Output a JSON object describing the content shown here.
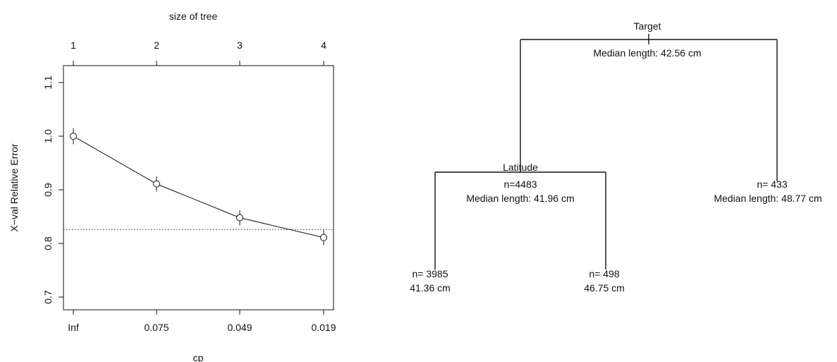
{
  "chart_data": [
    {
      "type": "line",
      "top_axis_label": "size of tree",
      "top_ticks": [
        "1",
        "2",
        "3",
        "4"
      ],
      "xlabel": "cp",
      "x_tick_labels": [
        "Inf",
        "0.075",
        "0.049",
        "0.019"
      ],
      "ylabel": "X−val Relative Error",
      "ylim": [
        0.7,
        1.1
      ],
      "y_ticks": [
        0.7,
        0.8,
        0.9,
        1.0,
        1.1
      ],
      "y_tick_labels": [
        "0.7",
        "0.8",
        "0.9",
        "1.0",
        "1.1"
      ],
      "points": [
        {
          "size": 1,
          "cp": "Inf",
          "y": 1.0,
          "lo": 0.985,
          "hi": 1.015
        },
        {
          "size": 2,
          "cp": "0.075",
          "y": 0.911,
          "lo": 0.897,
          "hi": 0.925
        },
        {
          "size": 3,
          "cp": "0.049",
          "y": 0.848,
          "lo": 0.834,
          "hi": 0.862
        },
        {
          "size": 4,
          "cp": "0.019",
          "y": 0.811,
          "lo": 0.797,
          "hi": 0.825
        }
      ],
      "reference_line": 0.826,
      "grid": false
    },
    {
      "type": "tree",
      "root": {
        "split_label": "Target",
        "stat": "Median length: 42.56 cm"
      },
      "left_node": {
        "split_label": "Latitude",
        "count": "n=4483",
        "stat": "Median length: 41.96 cm"
      },
      "right_leaf": {
        "count": "n= 433",
        "stat": "Median length: 48.77 cm"
      },
      "left_left_leaf": {
        "count": "n= 3985",
        "stat": "41.36 cm"
      },
      "left_right_leaf": {
        "count": "n= 498",
        "stat": "46.75 cm"
      }
    }
  ]
}
